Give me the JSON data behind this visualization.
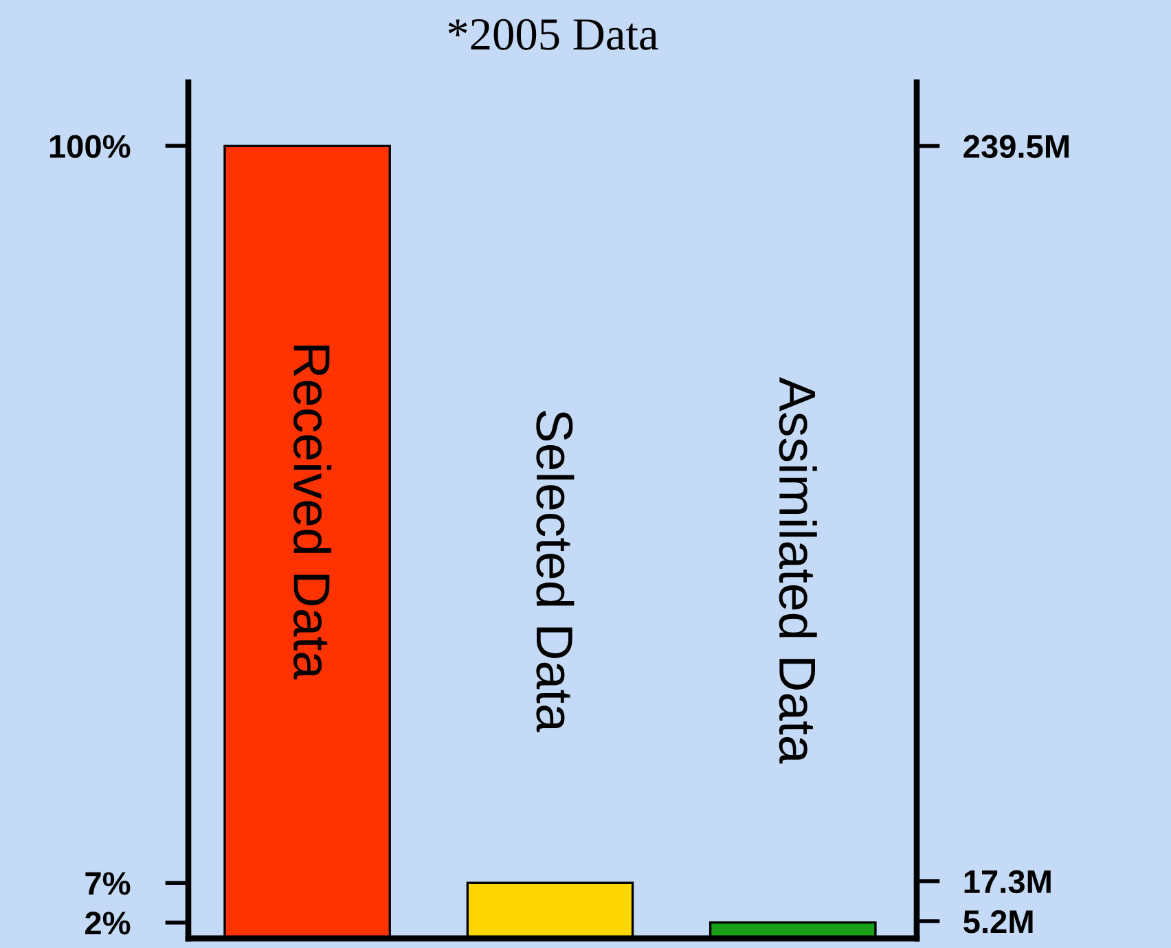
{
  "chart_data": {
    "type": "bar",
    "title": "*2005 Data",
    "categories": [
      "Received Data",
      "Selected Data",
      "Assimilated Data"
    ],
    "values": [
      100,
      7,
      2
    ],
    "colors": [
      "#ff3300",
      "#ffd700",
      "#18a018"
    ],
    "ylim": [
      0,
      108
    ],
    "yticks": [
      {
        "value": 100,
        "label": "100%"
      },
      {
        "value": 7,
        "label": "7%"
      },
      {
        "value": 2,
        "label": "2%"
      }
    ],
    "y2lim": [
      0,
      258.7
    ],
    "y2ticks": [
      {
        "value": 239.5,
        "label": "239.5M"
      },
      {
        "value": 17.3,
        "label": "17.3M"
      },
      {
        "value": 5.2,
        "label": "5.2M"
      }
    ]
  }
}
